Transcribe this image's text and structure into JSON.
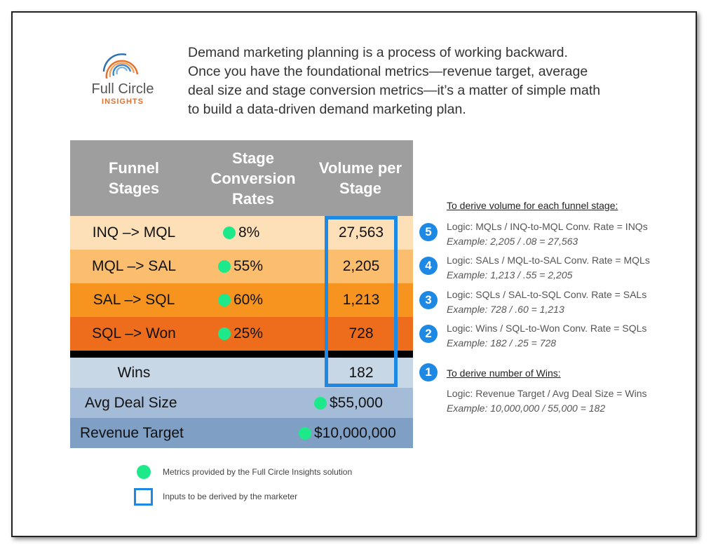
{
  "logo": {
    "name": "Full Circle",
    "tagline": "INSIGHTS"
  },
  "intro": [
    "Demand marketing planning is a process of working backward.",
    "Once you have the foundational metrics—revenue target, average",
    "deal size and stage conversion metrics—it’s a matter of simple math",
    "to build a data-driven demand marketing plan."
  ],
  "table": {
    "columns": [
      "Funnel Stages",
      "Stage Conversion Rates",
      "Volume per Stage"
    ],
    "rows": [
      [
        "INQ –> MQL",
        "8%",
        "27,563"
      ],
      [
        "MQL –> SAL",
        "55%",
        "2,205"
      ],
      [
        "SAL –> SQL",
        "60%",
        "1,213"
      ],
      [
        "SQL –> Won",
        "25%",
        "728"
      ]
    ],
    "wins": {
      "label": "Wins",
      "value": "182"
    },
    "deal_size": {
      "label": "Avg Deal Size",
      "value": "$55,000"
    },
    "revenue": {
      "label": "Revenue Target",
      "value": "$10,000,000"
    }
  },
  "notes": {
    "heading": "To derive volume for each funnel stage:",
    "steps": [
      {
        "number": "5",
        "logic": "Logic: MQLs / INQ-to-MQL Conv. Rate = INQs",
        "example": "Example: 2,205 / .08 = 27,563"
      },
      {
        "number": "4",
        "logic": "Logic: SALs / MQL-to-SAL Conv. Rate = MQLs",
        "example": "Example: 1,213 / .55 = 2,205"
      },
      {
        "number": "3",
        "logic": "Logic: SQLs / SAL-to-SQL Conv. Rate = SALs",
        "example": "Example: 728 / .60 = 1,213"
      },
      {
        "number": "2",
        "logic": "Logic: Wins / SQL-to-Won Conv. Rate = SQLs",
        "example": "Example: 182 / .25 = 728"
      }
    ],
    "wins_step": {
      "number": "1",
      "heading": "To derive number of Wins:",
      "logic": "Logic: Revenue Target / Avg Deal Size = Wins",
      "example": "Example: 10,000,000 / 55,000 = 182"
    }
  },
  "legend": [
    "Metrics provided by the Full Circle Insights solution",
    "Inputs to be derived by the marketer"
  ]
}
